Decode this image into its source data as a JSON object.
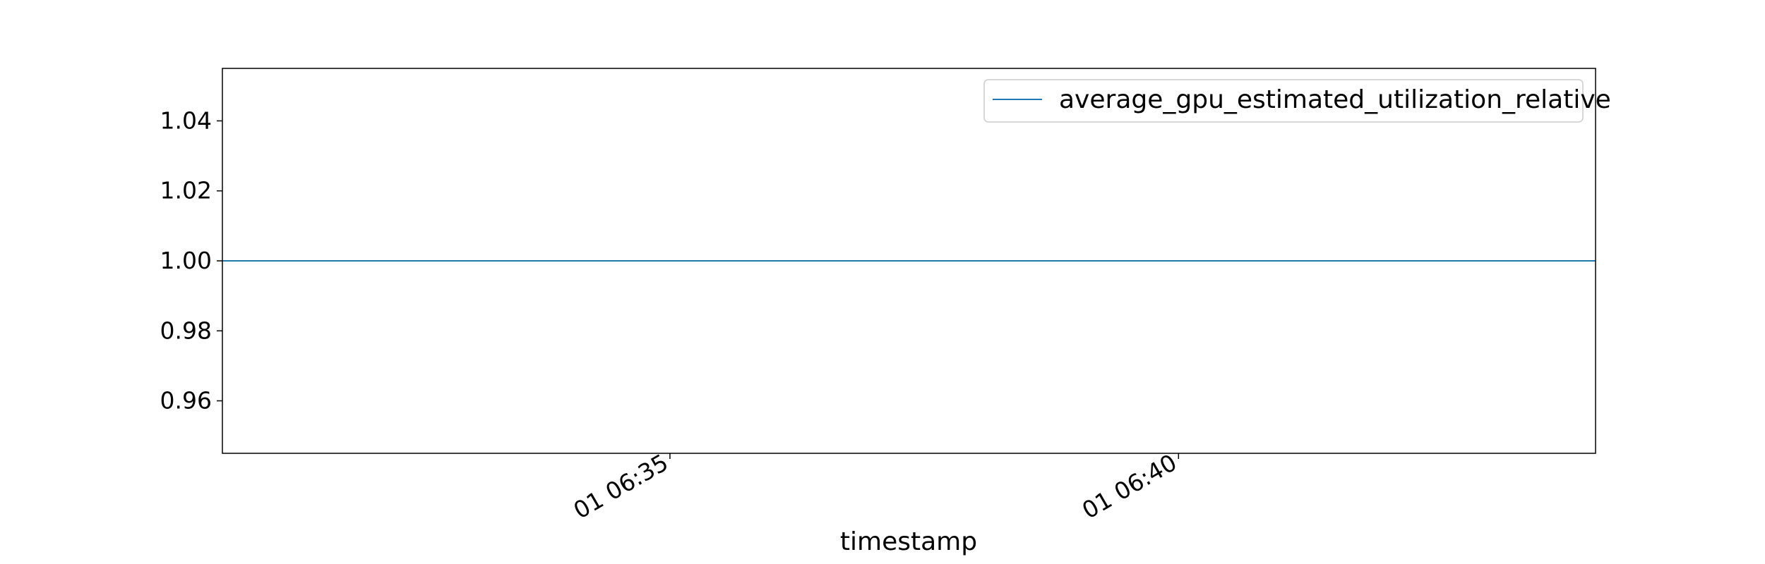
{
  "chart_data": {
    "type": "line",
    "title": "",
    "xlabel": "timestamp",
    "ylabel": "",
    "x_ticks": [
      "01 06:35",
      "01 06:40"
    ],
    "y_ticks": [
      "0.96",
      "0.98",
      "1.00",
      "1.02",
      "1.04"
    ],
    "ylim": [
      0.945,
      1.055
    ],
    "xlim": [
      "01 06:31",
      "01 06:44"
    ],
    "grid": false,
    "legend_position": "top-right",
    "series": [
      {
        "name": "average_gpu_estimated_utilization_relative",
        "color": "#1f77b4",
        "x": [
          "01 06:31",
          "01 06:44"
        ],
        "y": [
          1.0,
          1.0
        ]
      }
    ]
  }
}
